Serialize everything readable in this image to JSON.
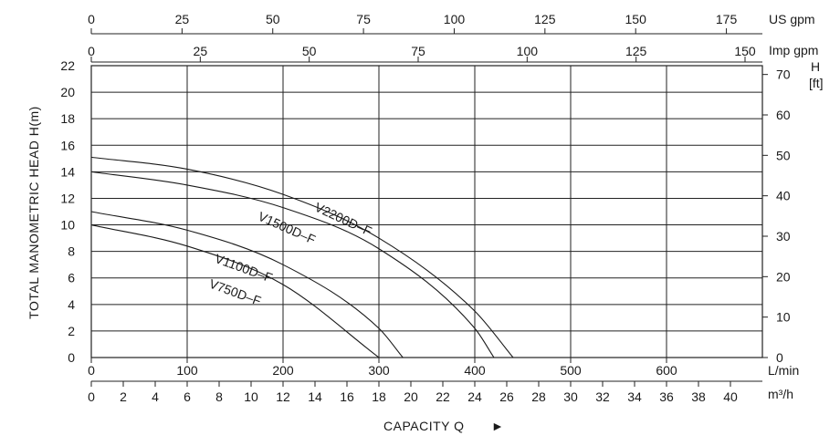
{
  "chart_data": {
    "type": "line",
    "ylabel": "TOTAL MANOMETRIC HEAD  H(m)",
    "xlabel": "CAPACITY  Q",
    "xlabel_arrow": "►",
    "x_unit": "L/min",
    "xlim": [
      0,
      700
    ],
    "ylim": [
      0,
      22
    ],
    "grid": true,
    "y_ticks": [
      0,
      2,
      4,
      6,
      8,
      10,
      12,
      14,
      16,
      18,
      20,
      22
    ],
    "x_ticks_lmin": [
      0,
      100,
      200,
      300,
      400,
      500,
      600
    ],
    "secondary_axes": {
      "ft": {
        "label_top": "H",
        "label_unit": "[ft]",
        "ticks": [
          0,
          10,
          20,
          30,
          40,
          50,
          60,
          70
        ]
      },
      "m3h": {
        "unit": "m³/h",
        "ticks": [
          0,
          2,
          4,
          6,
          8,
          10,
          12,
          14,
          16,
          18,
          20,
          22,
          24,
          26,
          28,
          30,
          32,
          34,
          36,
          38,
          40
        ]
      },
      "us_gpm": {
        "unit": "US gpm",
        "ticks": [
          0,
          25,
          50,
          75,
          100,
          125,
          150,
          175
        ]
      },
      "imp_gpm": {
        "unit": "Imp gpm",
        "ticks": [
          0,
          25,
          50,
          75,
          100,
          125,
          150
        ]
      }
    },
    "series": [
      {
        "name": "V2200D–F",
        "x": [
          0,
          100,
          200,
          300,
          400,
          440
        ],
        "y": [
          15.1,
          14.2,
          12.3,
          9.0,
          3.5,
          0
        ]
      },
      {
        "name": "V1500D–F",
        "x": [
          0,
          100,
          200,
          300,
          400,
          420
        ],
        "y": [
          14.0,
          13.0,
          11.3,
          8.2,
          2.2,
          0
        ]
      },
      {
        "name": "V1100D–F",
        "x": [
          0,
          100,
          200,
          300,
          325
        ],
        "y": [
          11.0,
          9.6,
          7.0,
          2.2,
          0
        ]
      },
      {
        "name": "V750D–F",
        "x": [
          0,
          100,
          200,
          300
        ],
        "y": [
          10.0,
          8.4,
          5.5,
          0
        ]
      }
    ]
  }
}
